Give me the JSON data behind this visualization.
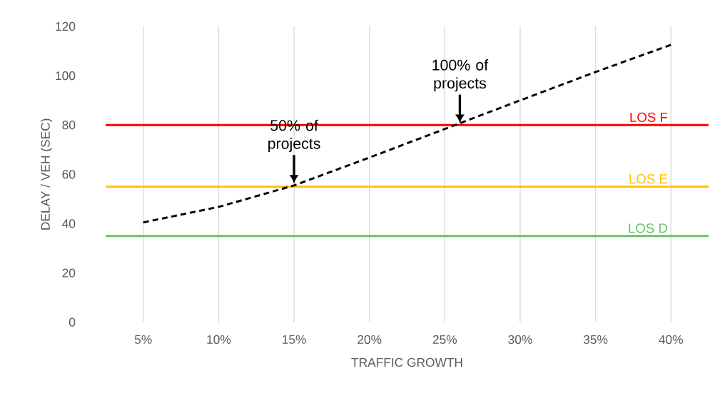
{
  "chart_data": {
    "type": "line",
    "xlabel": "TRAFFIC GROWTH",
    "ylabel": "DELAY / VEH (SEC)",
    "x": [
      5,
      10,
      15,
      20,
      25,
      30,
      35,
      40
    ],
    "series": [
      {
        "color": "#000000",
        "line_style": "dashed",
        "values": [
          40.5,
          46.8,
          55.5,
          66.8,
          78.4,
          90,
          101.5,
          112.5
        ]
      }
    ],
    "xlim": [
      2.5,
      42.5
    ],
    "xticks": [
      {
        "value": 5,
        "label": "5%"
      },
      {
        "value": 10,
        "label": "10%"
      },
      {
        "value": 15,
        "label": "15%"
      },
      {
        "value": 20,
        "label": "20%"
      },
      {
        "value": 25,
        "label": "25%"
      },
      {
        "value": 30,
        "label": "30%"
      },
      {
        "value": 35,
        "label": "35%"
      },
      {
        "value": 40,
        "label": "40%"
      }
    ],
    "ylim": [
      0,
      120
    ],
    "yticks": [
      0,
      20,
      40,
      60,
      80,
      100,
      120
    ],
    "ref_lines": [
      {
        "axis": "y",
        "value": 80,
        "label": "LOS F",
        "color": "#ff0000"
      },
      {
        "axis": "y",
        "value": 55,
        "label": "LOS E",
        "color": "#ffc000"
      },
      {
        "axis": "y",
        "value": 35,
        "label": "LOS D",
        "color": "#6cbf6c"
      }
    ],
    "annotations": [
      {
        "text": "50% of projects",
        "x": 15,
        "y": 55.5
      },
      {
        "text": "100% of projects",
        "x": 26,
        "y": 80
      }
    ],
    "grid": "x",
    "legend": false,
    "marker": "none"
  }
}
